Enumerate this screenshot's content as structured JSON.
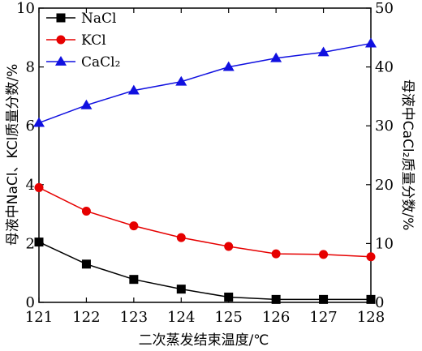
{
  "chart_data": {
    "type": "line",
    "x": [
      121,
      122,
      123,
      124,
      125,
      126,
      127,
      128
    ],
    "xlabel": "二次蒸发结束温度/℃",
    "xlim": [
      121,
      128
    ],
    "ylabel_left": "母液中NaCl、KCl质量分数/%",
    "ylim_left": [
      0,
      10
    ],
    "yticks_left": [
      0,
      2,
      4,
      6,
      8,
      10
    ],
    "ylabel_right": "母液中CaCl₂质量分数/%",
    "ylim_right": [
      0,
      50
    ],
    "yticks_right": [
      0,
      10,
      20,
      30,
      40,
      50
    ],
    "legend_position": "top-left",
    "series": [
      {
        "name": "NaCl",
        "axis": "left",
        "marker": "square",
        "color": "#000000",
        "values": [
          2.05,
          1.3,
          0.78,
          0.45,
          0.18,
          0.1,
          0.1,
          0.1
        ]
      },
      {
        "name": "KCl",
        "axis": "left",
        "marker": "circle",
        "color": "#e60000",
        "values": [
          3.9,
          3.1,
          2.6,
          2.2,
          1.9,
          1.65,
          1.63,
          1.55
        ]
      },
      {
        "name": "CaCl₂",
        "axis": "right",
        "marker": "triangle",
        "color": "#1010e0",
        "values": [
          30.5,
          33.5,
          36.0,
          37.5,
          40.0,
          41.5,
          42.5,
          44.0
        ]
      }
    ]
  }
}
